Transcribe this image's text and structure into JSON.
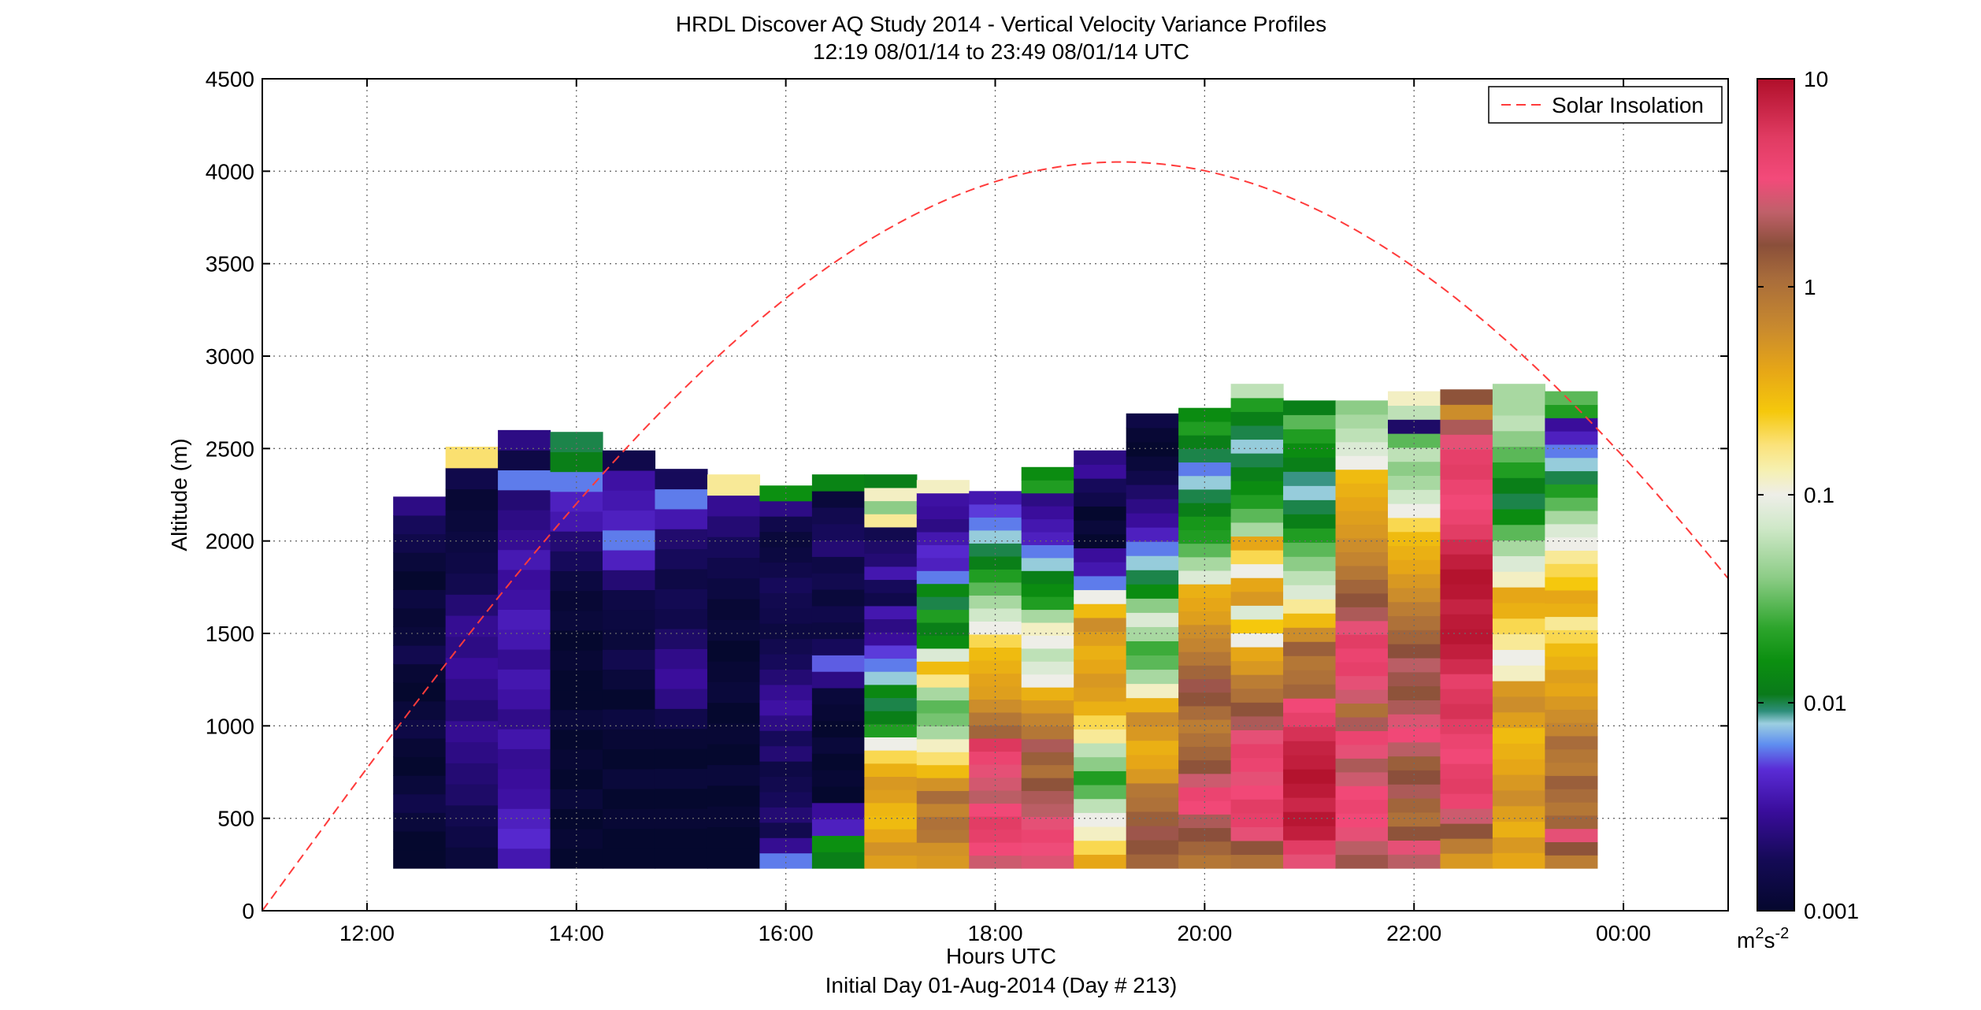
{
  "chart_data": {
    "type": "heatmap",
    "title": "HRDL Discover AQ Study 2014 - Vertical Velocity Variance Profiles",
    "subtitle": "12:19 08/01/14 to 23:49 08/01/14  UTC",
    "xlabel": "Hours UTC",
    "xlabel2": "Initial Day 01-Aug-2014 (Day # 213)",
    "ylabel": "Altitude (m)",
    "x_unit": "hours since 00:00 UTC 01-Aug-2014",
    "xlim": [
      11,
      25
    ],
    "ylim": [
      0,
      4500
    ],
    "x_ticks": [
      12,
      14,
      16,
      18,
      20,
      22,
      24
    ],
    "x_tick_labels": [
      "12:00",
      "14:00",
      "16:00",
      "18:00",
      "20:00",
      "22:00",
      "00:00"
    ],
    "y_ticks": [
      0,
      500,
      1000,
      1500,
      2000,
      2500,
      3000,
      3500,
      4000,
      4500
    ],
    "y_tick_labels": [
      "0",
      "500",
      "1000",
      "1500",
      "2000",
      "2500",
      "3000",
      "3500",
      "4000",
      "4500"
    ],
    "grid": true,
    "colorbar": {
      "scale": "log",
      "range": [
        0.001,
        10
      ],
      "tick_values": [
        0.001,
        0.01,
        0.1,
        1,
        10
      ],
      "tick_labels": [
        "0.001",
        "0.01",
        "0.1",
        "1",
        "10"
      ],
      "unit_base": "m",
      "unit_exp1": "2",
      "unit_mid": "s",
      "unit_exp2": "-2",
      "stops": [
        [
          "#05082e",
          0.0
        ],
        [
          "#140a55",
          0.06
        ],
        [
          "#3a0d9c",
          0.12
        ],
        [
          "#5a2cd6",
          0.17
        ],
        [
          "#5f8ef0",
          0.2
        ],
        [
          "#9ccfe0",
          0.225
        ],
        [
          "#2e8e7a",
          0.24
        ],
        [
          "#0a7a1a",
          0.26
        ],
        [
          "#0b8f10",
          0.3
        ],
        [
          "#2da52c",
          0.34
        ],
        [
          "#8ccc86",
          0.4
        ],
        [
          "#cfe8c8",
          0.46
        ],
        [
          "#eeeee8",
          0.5
        ],
        [
          "#f6f0b0",
          0.53
        ],
        [
          "#fbe27a",
          0.56
        ],
        [
          "#f5c80c",
          0.6
        ],
        [
          "#e6a617",
          0.65
        ],
        [
          "#c98a2e",
          0.7
        ],
        [
          "#a86c3b",
          0.76
        ],
        [
          "#8a4f3a",
          0.8
        ],
        [
          "#c0606a",
          0.84
        ],
        [
          "#f34a7a",
          0.88
        ],
        [
          "#e03b62",
          0.93
        ],
        [
          "#b00f2a",
          1.0
        ]
      ]
    },
    "profiles": [
      {
        "t": 12.5,
        "top": 2240,
        "bottom": 230,
        "values": [
          0.001,
          0.001,
          0.0012,
          0.0015,
          0.0012,
          0.001,
          0.0011,
          0.0014,
          0.0012,
          0.001,
          0.0011,
          0.0016,
          0.0012,
          0.0011,
          0.0013,
          0.001,
          0.0012,
          0.0015,
          0.0018,
          0.0025
        ]
      },
      {
        "t": 13.0,
        "top": 2510,
        "bottom": 230,
        "values": [
          0.0012,
          0.0014,
          0.0016,
          0.002,
          0.0022,
          0.0025,
          0.0028,
          0.0022,
          0.0026,
          0.003,
          0.0025,
          0.0028,
          0.0022,
          0.0016,
          0.0014,
          0.0013,
          0.0012,
          0.0011,
          0.0015,
          0.18
        ]
      },
      {
        "t": 13.5,
        "top": 2600,
        "bottom": 230,
        "values": [
          0.0035,
          0.0045,
          0.004,
          0.0032,
          0.003,
          0.0028,
          0.0034,
          0.0026,
          0.0032,
          0.0035,
          0.0028,
          0.0035,
          0.0038,
          0.0032,
          0.003,
          0.0036,
          0.0028,
          0.0025,
          0.0022,
          0.006,
          0.0014,
          0.0025
        ]
      },
      {
        "t": 14.0,
        "top": 2590,
        "bottom": 230,
        "values": [
          0.001,
          0.0011,
          0.001,
          0.0012,
          0.001,
          0.0011,
          0.001,
          0.0012,
          0.001,
          0.001,
          0.0011,
          0.001,
          0.0012,
          0.0011,
          0.0013,
          0.0018,
          0.0022,
          0.0035,
          0.004,
          0.006,
          0.012,
          0.01
        ]
      },
      {
        "t": 14.5,
        "top": 2490,
        "bottom": 230,
        "values": [
          0.001,
          0.001,
          0.0011,
          0.001,
          0.0012,
          0.001,
          0.0011,
          0.0013,
          0.001,
          0.0012,
          0.0016,
          0.0012,
          0.0013,
          0.0014,
          0.0022,
          0.004,
          0.006,
          0.004,
          0.0035,
          0.0032,
          0.0015
        ]
      },
      {
        "t": 15.0,
        "top": 2390,
        "bottom": 230,
        "values": [
          0.001,
          0.001,
          0.0011,
          0.001,
          0.0012,
          0.001,
          0.0011,
          0.0015,
          0.0025,
          0.003,
          0.0026,
          0.002,
          0.0015,
          0.0017,
          0.0014,
          0.0018,
          0.0021,
          0.0035,
          0.006,
          0.0018
        ]
      },
      {
        "t": 15.5,
        "top": 2360,
        "bottom": 230,
        "values": [
          0.001,
          0.001,
          0.0011,
          0.001,
          0.0012,
          0.001,
          0.0011,
          0.001,
          0.0012,
          0.0011,
          0.001,
          0.0012,
          0.0011,
          0.0013,
          0.0015,
          0.0018,
          0.0022,
          0.0028,
          0.15
        ]
      },
      {
        "t": 16.0,
        "top": 2300,
        "bottom": 230,
        "values": [
          0.006,
          0.0028,
          0.0016,
          0.0022,
          0.0018,
          0.0016,
          0.0014,
          0.0022,
          0.0018,
          0.0025,
          0.0032,
          0.0028,
          0.0022,
          0.0018,
          0.0016,
          0.0013,
          0.0015,
          0.0016,
          0.0018,
          0.0015,
          0.0013,
          0.0012,
          0.0015,
          0.0025,
          0.016
        ]
      },
      {
        "t": 16.5,
        "top": 2360,
        "bottom": 230,
        "values": [
          0.012,
          0.016,
          0.004,
          0.003,
          0.001,
          0.0011,
          0.001,
          0.0012,
          0.001,
          0.0011,
          0.0012,
          0.0025,
          0.0055,
          0.0018,
          0.0013,
          0.0015,
          0.0012,
          0.0016,
          0.0014,
          0.0022,
          0.0018,
          0.0016,
          0.0012,
          0.013
        ]
      },
      {
        "t": 17.0,
        "top": 2360,
        "bottom": 230,
        "values": [
          0.45,
          0.55,
          0.4,
          0.3,
          0.32,
          0.45,
          0.5,
          0.35,
          0.2,
          0.1,
          0.02,
          0.012,
          0.01,
          0.014,
          0.008,
          0.006,
          0.005,
          0.003,
          0.0025,
          0.0035,
          0.0015,
          0.0018,
          0.0035,
          0.0022,
          0.002,
          0.0016,
          0.15,
          0.04,
          0.12,
          0.012
        ]
      },
      {
        "t": 17.5,
        "top": 2330,
        "bottom": 230,
        "values": [
          0.5,
          0.55,
          0.9,
          1.0,
          0.7,
          1.1,
          0.55,
          0.3,
          0.18,
          0.12,
          0.05,
          0.035,
          0.03,
          0.05,
          0.16,
          0.3,
          0.08,
          0.015,
          0.012,
          0.02,
          0.01,
          0.014,
          0.006,
          0.004,
          0.0045,
          0.0035,
          0.0025,
          0.003,
          0.0032,
          0.12
        ]
      },
      {
        "t": 18.0,
        "top": 2270,
        "bottom": 230,
        "values": [
          2.5,
          3.5,
          4.5,
          5.0,
          3.5,
          2.2,
          2.6,
          3.0,
          4.0,
          5.5,
          1.2,
          0.9,
          0.6,
          0.45,
          0.42,
          0.35,
          0.3,
          0.2,
          0.1,
          0.07,
          0.05,
          0.03,
          0.02,
          0.012,
          0.01,
          0.008,
          0.006,
          0.005,
          0.0035
        ]
      },
      {
        "t": 18.5,
        "top": 2400,
        "bottom": 230,
        "values": [
          2.8,
          3.2,
          4.0,
          3.0,
          2.2,
          2.0,
          1.5,
          1.0,
          1.3,
          2.0,
          0.9,
          0.7,
          0.5,
          0.35,
          0.1,
          0.08,
          0.06,
          0.1,
          0.12,
          0.05,
          0.02,
          0.015,
          0.012,
          0.008,
          0.006,
          0.004,
          0.0035,
          0.003,
          0.0025,
          0.02,
          0.015
        ]
      },
      {
        "t": 19.0,
        "top": 2490,
        "bottom": 230,
        "values": [
          0.4,
          0.2,
          0.12,
          0.1,
          0.06,
          0.03,
          0.02,
          0.04,
          0.06,
          0.15,
          0.2,
          0.35,
          0.45,
          0.5,
          0.4,
          0.35,
          0.45,
          0.6,
          0.3,
          0.1,
          0.006,
          0.0035,
          0.003,
          0.001,
          0.0012,
          0.001,
          0.0015,
          0.0018,
          0.003,
          0.0025
        ]
      },
      {
        "t": 19.5,
        "top": 2690,
        "bottom": 230,
        "values": [
          1.2,
          1.5,
          1.8,
          1.3,
          1.0,
          0.9,
          0.5,
          0.4,
          0.35,
          0.5,
          0.6,
          0.35,
          0.12,
          0.05,
          0.03,
          0.025,
          0.05,
          0.08,
          0.04,
          0.015,
          0.01,
          0.008,
          0.006,
          0.004,
          0.003,
          0.0025,
          0.002,
          0.0015,
          0.0012,
          0.001,
          0.0011,
          0.0014
        ]
      },
      {
        "t": 20.0,
        "top": 2720,
        "bottom": 230,
        "values": [
          0.9,
          1.2,
          1.6,
          2.0,
          3.5,
          4.0,
          2.5,
          1.5,
          1.2,
          1.0,
          0.8,
          1.1,
          1.5,
          1.8,
          1.2,
          0.9,
          0.7,
          0.6,
          0.45,
          0.4,
          0.35,
          0.08,
          0.05,
          0.03,
          0.02,
          0.018,
          0.012,
          0.01,
          0.008,
          0.006,
          0.01,
          0.012,
          0.02,
          0.015
        ]
      },
      {
        "t": 20.5,
        "top": 2850,
        "bottom": 230,
        "values": [
          1.0,
          1.5,
          3.0,
          4.5,
          5.0,
          3.5,
          3.0,
          4.0,
          4.5,
          3.0,
          2.0,
          1.5,
          1.0,
          0.8,
          0.5,
          0.4,
          0.1,
          0.25,
          0.08,
          0.5,
          0.4,
          0.1,
          0.2,
          0.4,
          0.05,
          0.03,
          0.02,
          0.015,
          0.012,
          0.01,
          0.008,
          0.01,
          0.012,
          0.02,
          0.06
        ]
      },
      {
        "t": 21.0,
        "top": 2760,
        "bottom": 230,
        "values": [
          3.0,
          5.0,
          8.0,
          9.0,
          7.0,
          8.5,
          9.5,
          8.0,
          7.5,
          6.0,
          4.5,
          3.5,
          1.2,
          1.0,
          0.9,
          1.3,
          0.6,
          0.3,
          0.15,
          0.08,
          0.06,
          0.04,
          0.03,
          0.02,
          0.012,
          0.01,
          0.008,
          0.009,
          0.012,
          0.015,
          0.02,
          0.03,
          0.012
        ]
      },
      {
        "t": 21.5,
        "top": 2760,
        "bottom": 230,
        "values": [
          1.8,
          2.2,
          3.0,
          3.5,
          4.0,
          3.5,
          2.5,
          2.0,
          3.0,
          4.0,
          2.0,
          1.0,
          2.5,
          3.0,
          4.5,
          4.0,
          5.0,
          3.0,
          2.0,
          1.5,
          1.2,
          0.9,
          0.7,
          0.6,
          0.5,
          0.45,
          0.4,
          0.35,
          0.3,
          0.1,
          0.08,
          0.06,
          0.05,
          0.04
        ]
      },
      {
        "t": 22.0,
        "top": 2810,
        "bottom": 230,
        "values": [
          2.2,
          3.0,
          1.5,
          1.0,
          1.2,
          2.0,
          1.6,
          1.3,
          2.2,
          3.5,
          2.8,
          2.0,
          1.5,
          1.8,
          2.2,
          1.6,
          1.2,
          1.0,
          0.8,
          0.6,
          0.5,
          0.4,
          0.35,
          0.3,
          0.2,
          0.1,
          0.07,
          0.05,
          0.04,
          0.06,
          0.03,
          0.002,
          0.06,
          0.12
        ]
      },
      {
        "t": 22.5,
        "top": 2820,
        "bottom": 230,
        "values": [
          0.5,
          0.8,
          1.5,
          2.5,
          4.0,
          5.0,
          4.5,
          3.5,
          4.0,
          5.0,
          6.0,
          5.5,
          4.5,
          6.5,
          8.0,
          9.0,
          8.5,
          7.5,
          9.0,
          9.5,
          8.0,
          6.5,
          5.0,
          4.0,
          3.5,
          4.0,
          5.0,
          4.5,
          3.0,
          2.0,
          0.6,
          1.5
        ]
      },
      {
        "t": 23.0,
        "top": 2850,
        "bottom": 230,
        "values": [
          0.4,
          0.5,
          0.35,
          0.45,
          0.6,
          0.5,
          0.4,
          0.35,
          0.3,
          0.45,
          0.6,
          0.5,
          0.12,
          0.1,
          0.15,
          0.2,
          0.35,
          0.4,
          0.12,
          0.08,
          0.05,
          0.03,
          0.015,
          0.01,
          0.012,
          0.02,
          0.03,
          0.04,
          0.06,
          0.05,
          0.05
        ]
      },
      {
        "t": 23.5,
        "top": 2810,
        "bottom": 230,
        "values": [
          0.8,
          1.5,
          3.0,
          1.2,
          0.9,
          1.1,
          1.3,
          0.8,
          0.9,
          1.1,
          0.7,
          0.6,
          0.5,
          0.4,
          0.45,
          0.35,
          0.3,
          0.2,
          0.15,
          0.35,
          0.4,
          0.25,
          0.2,
          0.15,
          0.1,
          0.08,
          0.05,
          0.03,
          0.02,
          0.01,
          0.008,
          0.006,
          0.004,
          0.003,
          0.02,
          0.03
        ]
      }
    ],
    "series": [
      {
        "name": "Solar Insolation",
        "color": "#ff3b3b",
        "peak_t": 19.2,
        "peak_alt": 4050,
        "half_width": 8.2
      }
    ],
    "legend_position": "top-right"
  }
}
